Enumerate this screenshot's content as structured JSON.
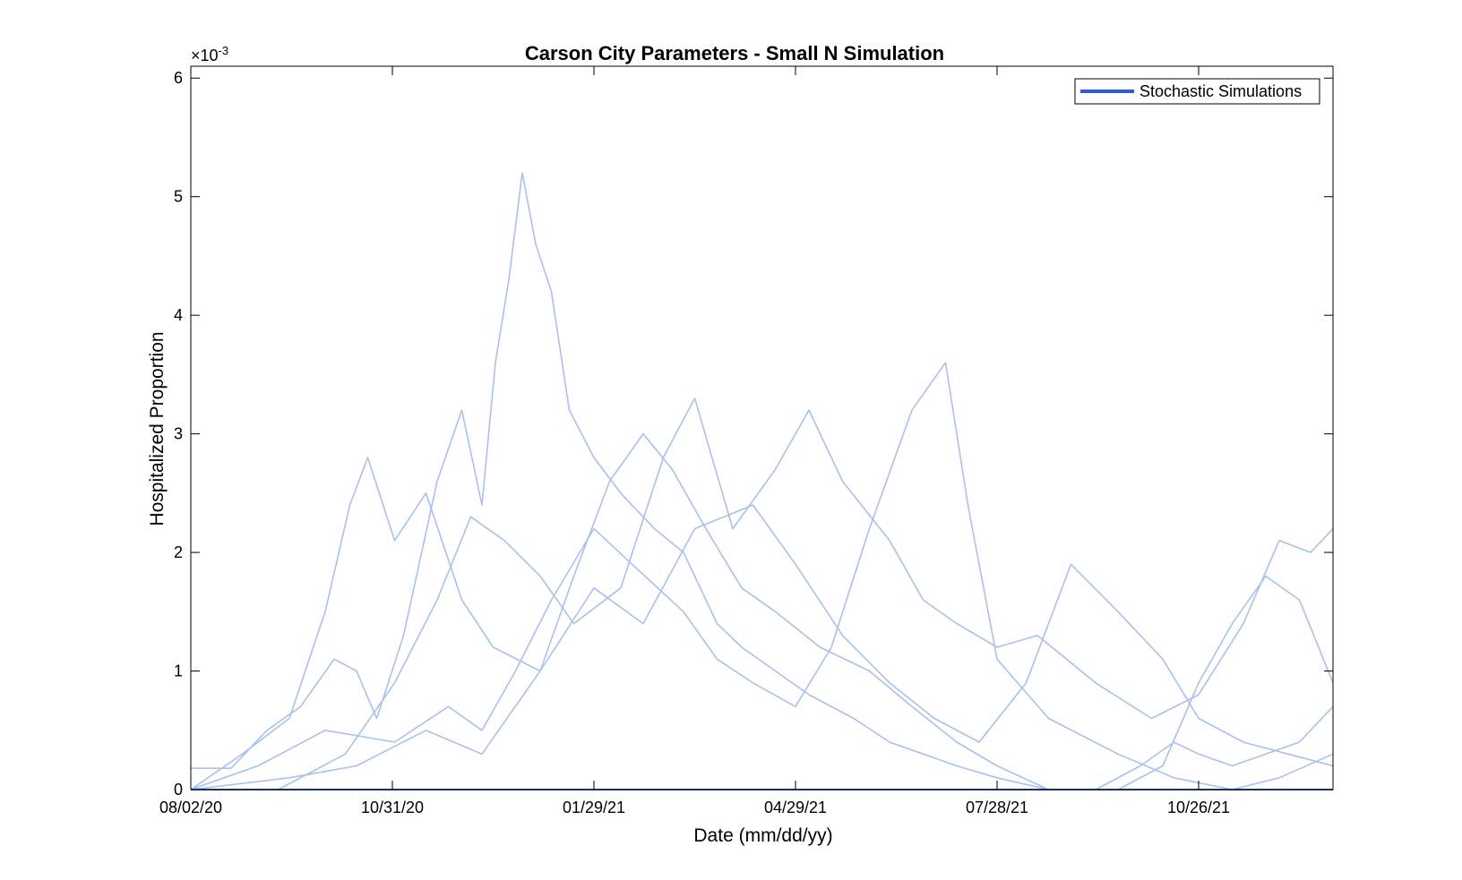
{
  "chart_data": {
    "type": "line",
    "title": "Carson City Parameters - Small N Simulation",
    "xlabel": "Date (mm/dd/yy)",
    "ylabel": "Hospitalized Proportion",
    "y_exponent_base": "×10",
    "y_exponent_power": "-3",
    "y_scale_factor": 0.001,
    "x_tick_labels": [
      "08/02/20",
      "10/31/20",
      "01/29/21",
      "04/29/21",
      "07/28/21",
      "10/26/21"
    ],
    "x_tick_dates": [
      "2020-08-02",
      "2020-10-31",
      "2021-01-29",
      "2021-04-29",
      "2021-07-28",
      "2021-10-26"
    ],
    "xlim": [
      "2020-08-02",
      "2021-12-25"
    ],
    "y_ticks": [
      0,
      1,
      2,
      3,
      4,
      5,
      6
    ],
    "y_tick_labels": [
      "0",
      "1",
      "2",
      "3",
      "4",
      "5",
      "6"
    ],
    "ylim": [
      0,
      6.1
    ],
    "grid": false,
    "legend": {
      "entries": [
        "Stochastic Simulations"
      ],
      "placement": "top-right"
    },
    "series_color": "#a9c1ec",
    "legend_color": "#2e5fd1",
    "baseline_color": "#2e5fd1",
    "series": [
      {
        "x": [
          "2020-08-02",
          "2020-08-20",
          "2020-09-05",
          "2020-09-20",
          "2020-10-05",
          "2020-10-15",
          "2020-10-24",
          "2020-11-05",
          "2020-11-20",
          "2020-12-01",
          "2020-12-10",
          "2020-12-16",
          "2020-12-22",
          "2020-12-28",
          "2021-01-03",
          "2021-01-10",
          "2021-01-18",
          "2021-01-29",
          "2021-02-10",
          "2021-02-25",
          "2021-03-10",
          "2021-03-25",
          "2021-04-05",
          "2021-04-20",
          "2021-05-05",
          "2021-05-25",
          "2021-06-10",
          "2021-06-25",
          "2021-07-10",
          "2021-07-28",
          "2021-08-20",
          "2021-09-10",
          "2021-09-30",
          "2021-10-15",
          "2021-10-26",
          "2021-11-10",
          "2021-11-25",
          "2021-12-10",
          "2021-12-25"
        ],
        "values": [
          0.18,
          0.18,
          0.5,
          0.7,
          1.1,
          1.0,
          0.6,
          1.3,
          2.6,
          3.2,
          2.4,
          3.6,
          4.3,
          5.2,
          4.6,
          4.2,
          3.2,
          2.8,
          2.5,
          2.2,
          2.0,
          1.4,
          1.2,
          1.0,
          0.8,
          0.6,
          0.4,
          0.3,
          0.2,
          0.1,
          0.0,
          0.0,
          0.2,
          0.4,
          0.3,
          0.2,
          0.3,
          0.4,
          0.7
        ]
      },
      {
        "x": [
          "2020-08-02",
          "2020-08-25",
          "2020-09-15",
          "2020-10-01",
          "2020-10-12",
          "2020-10-20",
          "2020-11-01",
          "2020-11-15",
          "2020-12-01",
          "2020-12-15",
          "2021-01-05",
          "2021-01-20",
          "2021-02-05",
          "2021-02-20",
          "2021-03-05",
          "2021-03-20",
          "2021-04-05",
          "2021-04-20",
          "2021-05-10",
          "2021-06-01",
          "2021-06-20",
          "2021-07-10",
          "2021-07-28",
          "2021-08-20",
          "2021-09-20",
          "2021-10-10",
          "2021-10-26",
          "2021-11-10",
          "2021-11-25",
          "2021-12-10",
          "2021-12-25"
        ],
        "values": [
          0.0,
          0.3,
          0.6,
          1.5,
          2.4,
          2.8,
          2.1,
          2.5,
          1.6,
          1.2,
          1.0,
          1.8,
          2.6,
          3.0,
          2.7,
          2.2,
          1.7,
          1.5,
          1.2,
          1.0,
          0.7,
          0.4,
          0.2,
          0.0,
          0.0,
          0.2,
          0.9,
          1.4,
          1.8,
          1.6,
          0.9
        ]
      },
      {
        "x": [
          "2020-08-02",
          "2020-09-10",
          "2020-10-10",
          "2020-11-01",
          "2020-11-20",
          "2020-12-05",
          "2020-12-20",
          "2021-01-05",
          "2021-01-20",
          "2021-02-10",
          "2021-03-01",
          "2021-03-15",
          "2021-04-01",
          "2021-04-20",
          "2021-05-05",
          "2021-05-20",
          "2021-06-10",
          "2021-06-25",
          "2021-07-10",
          "2021-07-28",
          "2021-08-15",
          "2021-09-10",
          "2021-10-05",
          "2021-10-26",
          "2021-11-15",
          "2021-12-01",
          "2021-12-15",
          "2021-12-25"
        ],
        "values": [
          0.0,
          0.0,
          0.3,
          0.9,
          1.6,
          2.3,
          2.1,
          1.8,
          1.4,
          1.7,
          2.8,
          3.3,
          2.2,
          2.7,
          3.2,
          2.6,
          2.1,
          1.6,
          1.4,
          1.2,
          1.3,
          0.9,
          0.6,
          0.8,
          1.4,
          2.1,
          2.0,
          2.2
        ]
      },
      {
        "x": [
          "2020-08-02",
          "2020-09-01",
          "2020-10-01",
          "2020-11-01",
          "2020-11-25",
          "2020-12-10",
          "2020-12-25",
          "2021-01-10",
          "2021-01-29",
          "2021-02-15",
          "2021-03-10",
          "2021-03-25",
          "2021-04-10",
          "2021-04-29",
          "2021-05-15",
          "2021-06-01",
          "2021-06-20",
          "2021-07-05",
          "2021-07-15",
          "2021-07-28",
          "2021-08-20",
          "2021-09-20",
          "2021-10-15",
          "2021-11-10",
          "2021-12-01",
          "2021-12-25"
        ],
        "values": [
          0.0,
          0.2,
          0.5,
          0.4,
          0.7,
          0.5,
          1.0,
          1.6,
          2.2,
          1.9,
          1.5,
          1.1,
          0.9,
          0.7,
          1.2,
          2.2,
          3.2,
          3.6,
          2.4,
          1.1,
          0.6,
          0.3,
          0.1,
          0.0,
          0.1,
          0.3
        ]
      },
      {
        "x": [
          "2020-08-02",
          "2020-09-15",
          "2020-10-15",
          "2020-11-15",
          "2020-12-10",
          "2021-01-05",
          "2021-01-29",
          "2021-02-20",
          "2021-03-15",
          "2021-04-10",
          "2021-04-29",
          "2021-05-20",
          "2021-06-10",
          "2021-06-30",
          "2021-07-20",
          "2021-08-10",
          "2021-08-30",
          "2021-09-20",
          "2021-10-10",
          "2021-10-26",
          "2021-11-15",
          "2021-12-05",
          "2021-12-25"
        ],
        "values": [
          0.0,
          0.1,
          0.2,
          0.5,
          0.3,
          1.0,
          1.7,
          1.4,
          2.2,
          2.4,
          1.9,
          1.3,
          0.9,
          0.6,
          0.4,
          0.9,
          1.9,
          1.5,
          1.1,
          0.6,
          0.4,
          0.3,
          0.2
        ]
      }
    ]
  }
}
